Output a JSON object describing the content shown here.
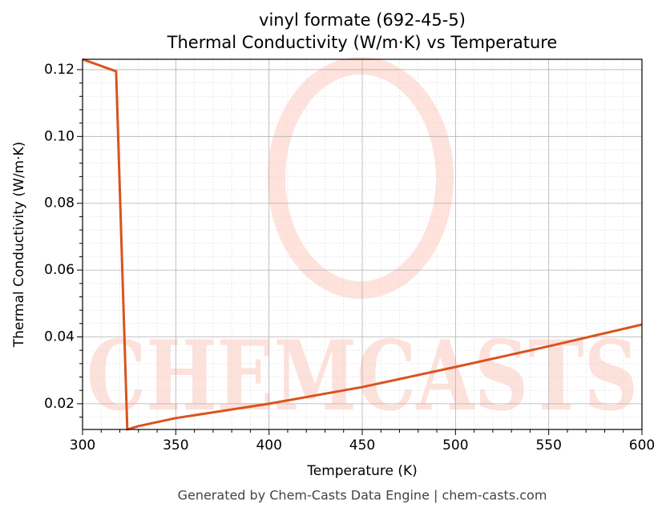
{
  "chart_data": {
    "type": "line",
    "title": "vinyl formate (692-45-5)",
    "subtitle": "Thermal Conductivity (W/m·K) vs Temperature",
    "x_label": "Temperature (K)",
    "y_label": "Thermal Conductivity (W/m·K)",
    "footer": "Generated by Chem-Casts Data Engine | chem-casts.com",
    "watermark": "CHEMCASTS",
    "x": [
      300,
      318,
      324,
      330,
      350,
      400,
      450,
      500,
      550,
      600
    ],
    "series": [
      {
        "name": "Thermal Conductivity",
        "color": "#d9531e",
        "values": [
          0.1231,
          0.1195,
          0.0123,
          0.0133,
          0.0157,
          0.02,
          0.025,
          0.031,
          0.0372,
          0.0437
        ]
      }
    ],
    "xlim": [
      300,
      600
    ],
    "xticks": [
      300,
      350,
      400,
      450,
      500,
      550,
      600
    ],
    "ylim": [
      0.0123,
      0.1231
    ],
    "yticks": [
      {
        "value": 0.02,
        "label": "0.02"
      },
      {
        "value": 0.04,
        "label": "0.04"
      },
      {
        "value": 0.06,
        "label": "0.06"
      },
      {
        "value": 0.08,
        "label": "0.08"
      },
      {
        "value": 0.1,
        "label": "0.10"
      },
      {
        "value": 0.12,
        "label": "0.12"
      }
    ],
    "grid": true,
    "minor_grid": true
  }
}
